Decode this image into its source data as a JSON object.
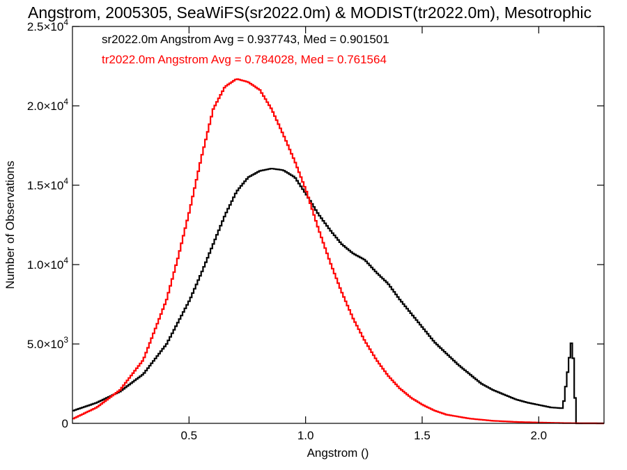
{
  "chart_data": {
    "type": "line",
    "title": "Angstrom, 2005305, SeaWiFS(sr2022.0m) & MODIST(tr2022.0m), Mesotrophic",
    "xlabel": "Angstrom ()",
    "ylabel": "Number of Observations",
    "xlim": [
      0.0,
      2.28
    ],
    "ylim": [
      0,
      25000
    ],
    "xticks": [
      {
        "value": 0.5,
        "label": "0.5"
      },
      {
        "value": 1.0,
        "label": "1.0"
      },
      {
        "value": 1.5,
        "label": "1.5"
      },
      {
        "value": 2.0,
        "label": "2.0"
      }
    ],
    "yticks": [
      {
        "value": 0,
        "mant": "0",
        "exp": ""
      },
      {
        "value": 5000,
        "mant": "5.0×10",
        "exp": "3"
      },
      {
        "value": 10000,
        "mant": "1.0×10",
        "exp": "4"
      },
      {
        "value": 15000,
        "mant": "1.5×10",
        "exp": "4"
      },
      {
        "value": 20000,
        "mant": "2.0×10",
        "exp": "4"
      },
      {
        "value": 25000,
        "mant": "2.5×10",
        "exp": "4"
      }
    ],
    "annotations": [
      {
        "text": "sr2022.0m Angstrom Avg = 0.937743, Med = 0.901501",
        "color": "#000000"
      },
      {
        "text": "tr2022.0m Angstrom Avg = 0.784028, Med = 0.761564",
        "color": "#ff0000"
      }
    ],
    "series": [
      {
        "color": "#000000",
        "style": "step",
        "points": [
          [
            0.0,
            800
          ],
          [
            0.1,
            1300
          ],
          [
            0.2,
            2000
          ],
          [
            0.3,
            3100
          ],
          [
            0.4,
            5000
          ],
          [
            0.5,
            7800
          ],
          [
            0.55,
            9500
          ],
          [
            0.6,
            11300
          ],
          [
            0.65,
            13100
          ],
          [
            0.7,
            14600
          ],
          [
            0.75,
            15500
          ],
          [
            0.8,
            15900
          ],
          [
            0.85,
            16050
          ],
          [
            0.9,
            15950
          ],
          [
            0.95,
            15500
          ],
          [
            1.0,
            14400
          ],
          [
            1.05,
            13200
          ],
          [
            1.1,
            12200
          ],
          [
            1.15,
            11300
          ],
          [
            1.2,
            10700
          ],
          [
            1.25,
            10300
          ],
          [
            1.3,
            9500
          ],
          [
            1.35,
            8800
          ],
          [
            1.4,
            7800
          ],
          [
            1.45,
            6900
          ],
          [
            1.5,
            6000
          ],
          [
            1.55,
            5100
          ],
          [
            1.6,
            4400
          ],
          [
            1.65,
            3700
          ],
          [
            1.7,
            3100
          ],
          [
            1.75,
            2500
          ],
          [
            1.8,
            2100
          ],
          [
            1.85,
            1800
          ],
          [
            1.9,
            1500
          ],
          [
            1.95,
            1300
          ],
          [
            2.0,
            1150
          ],
          [
            2.05,
            1000
          ],
          [
            2.1,
            950
          ],
          [
            2.14,
            5500
          ],
          [
            2.15,
            2000
          ],
          [
            2.16,
            0
          ],
          [
            2.28,
            0
          ]
        ]
      },
      {
        "color": "#ff0000",
        "style": "step",
        "points": [
          [
            0.0,
            300
          ],
          [
            0.1,
            1000
          ],
          [
            0.2,
            2100
          ],
          [
            0.3,
            4000
          ],
          [
            0.4,
            7800
          ],
          [
            0.45,
            10500
          ],
          [
            0.5,
            13500
          ],
          [
            0.55,
            16800
          ],
          [
            0.6,
            19800
          ],
          [
            0.65,
            21200
          ],
          [
            0.7,
            21700
          ],
          [
            0.75,
            21500
          ],
          [
            0.8,
            21000
          ],
          [
            0.85,
            19800
          ],
          [
            0.9,
            18200
          ],
          [
            0.95,
            16500
          ],
          [
            1.0,
            14600
          ],
          [
            1.05,
            12300
          ],
          [
            1.1,
            10200
          ],
          [
            1.15,
            8300
          ],
          [
            1.2,
            6600
          ],
          [
            1.25,
            5200
          ],
          [
            1.3,
            4000
          ],
          [
            1.35,
            3000
          ],
          [
            1.4,
            2200
          ],
          [
            1.45,
            1600
          ],
          [
            1.5,
            1150
          ],
          [
            1.55,
            800
          ],
          [
            1.6,
            550
          ],
          [
            1.7,
            300
          ],
          [
            1.8,
            160
          ],
          [
            1.9,
            90
          ],
          [
            2.0,
            50
          ],
          [
            2.1,
            20
          ],
          [
            2.2,
            5
          ],
          [
            2.28,
            0
          ]
        ]
      }
    ]
  }
}
